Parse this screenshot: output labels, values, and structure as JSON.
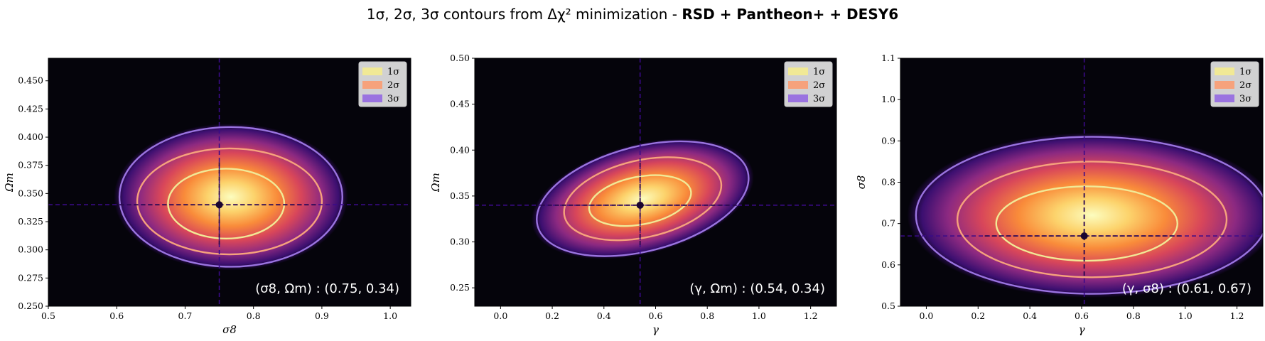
{
  "title_prefix": "1σ, 2σ, 3σ contours from Δχ² minimization - ",
  "title_bold": "RSD + Pantheon+ + DESY6",
  "chart_data": [
    {
      "type": "contour",
      "xlabel": "σ8",
      "ylabel": "Ωm",
      "xlim": [
        0.5,
        1.03
      ],
      "ylim": [
        0.25,
        0.47
      ],
      "xticks": [
        "0.5",
        "0.6",
        "0.7",
        "0.8",
        "0.9",
        "1.0"
      ],
      "yticks": [
        "0.250",
        "0.275",
        "0.300",
        "0.325",
        "0.350",
        "0.375",
        "0.400",
        "0.425",
        "0.450"
      ],
      "best_fit": [
        0.75,
        0.34
      ],
      "annotation": "(σ8, Ωm) : (0.75, 0.34)",
      "legend": [
        "1σ",
        "2σ",
        "3σ"
      ],
      "legend_position": "upper right",
      "contours": [
        {
          "level": "1σ",
          "center": [
            0.76,
            0.341
          ],
          "semi_x": 0.085,
          "semi_y": 0.031
        },
        {
          "level": "2σ",
          "center": [
            0.765,
            0.343
          ],
          "semi_x": 0.135,
          "semi_y": 0.047
        },
        {
          "level": "3σ",
          "center": [
            0.767,
            0.347
          ],
          "semi_x": 0.163,
          "semi_y": 0.062
        }
      ]
    },
    {
      "type": "contour",
      "xlabel": "γ",
      "ylabel": "Ωm",
      "xlim": [
        -0.1,
        1.3
      ],
      "ylim": [
        0.23,
        0.5
      ],
      "xticks": [
        "0.0",
        "0.2",
        "0.4",
        "0.6",
        "0.8",
        "1.0",
        "1.2"
      ],
      "yticks": [
        "0.25",
        "0.30",
        "0.35",
        "0.40",
        "0.45",
        "0.50"
      ],
      "best_fit": [
        0.54,
        0.34
      ],
      "annotation": "(γ, Ωm) : (0.54, 0.34)",
      "legend": [
        "1σ",
        "2σ",
        "3σ"
      ],
      "legend_position": "upper right",
      "contours": [
        {
          "level": "1σ",
          "center": [
            0.54,
            0.345
          ],
          "semi_x": 0.2,
          "semi_y": 0.026,
          "tilt": 0.06
        },
        {
          "level": "2σ",
          "center": [
            0.55,
            0.347
          ],
          "semi_x": 0.31,
          "semi_y": 0.042,
          "tilt": 0.07
        },
        {
          "level": "3σ",
          "center": [
            0.55,
            0.347
          ],
          "semi_x": 0.42,
          "semi_y": 0.057,
          "tilt": 0.08
        }
      ]
    },
    {
      "type": "contour",
      "xlabel": "γ",
      "ylabel": "σ8",
      "xlim": [
        -0.1,
        1.3
      ],
      "ylim": [
        0.5,
        1.1
      ],
      "xticks": [
        "0.0",
        "0.2",
        "0.4",
        "0.6",
        "0.8",
        "1.0",
        "1.2"
      ],
      "yticks": [
        "0.5",
        "0.6",
        "0.7",
        "0.8",
        "0.9",
        "1.0",
        "1.1"
      ],
      "best_fit": [
        0.61,
        0.67
      ],
      "annotation": "(γ, σ8) : (0.61, 0.67)",
      "legend": [
        "1σ",
        "2σ",
        "3σ"
      ],
      "legend_position": "upper right",
      "contours": [
        {
          "level": "1σ",
          "center": [
            0.62,
            0.7
          ],
          "semi_x": 0.35,
          "semi_y": 0.09
        },
        {
          "level": "2σ",
          "center": [
            0.64,
            0.71
          ],
          "semi_x": 0.52,
          "semi_y": 0.14
        },
        {
          "level": "3σ",
          "center": [
            0.64,
            0.72
          ],
          "semi_x": 0.68,
          "semi_y": 0.19
        }
      ]
    }
  ],
  "colors": {
    "background": "#05040b",
    "sigma1": "#f1e996",
    "sigma2": "#f6a27c",
    "sigma3": "#9a73e0",
    "crosshair": "#3a0a88",
    "bestfit": "#1a0530"
  }
}
